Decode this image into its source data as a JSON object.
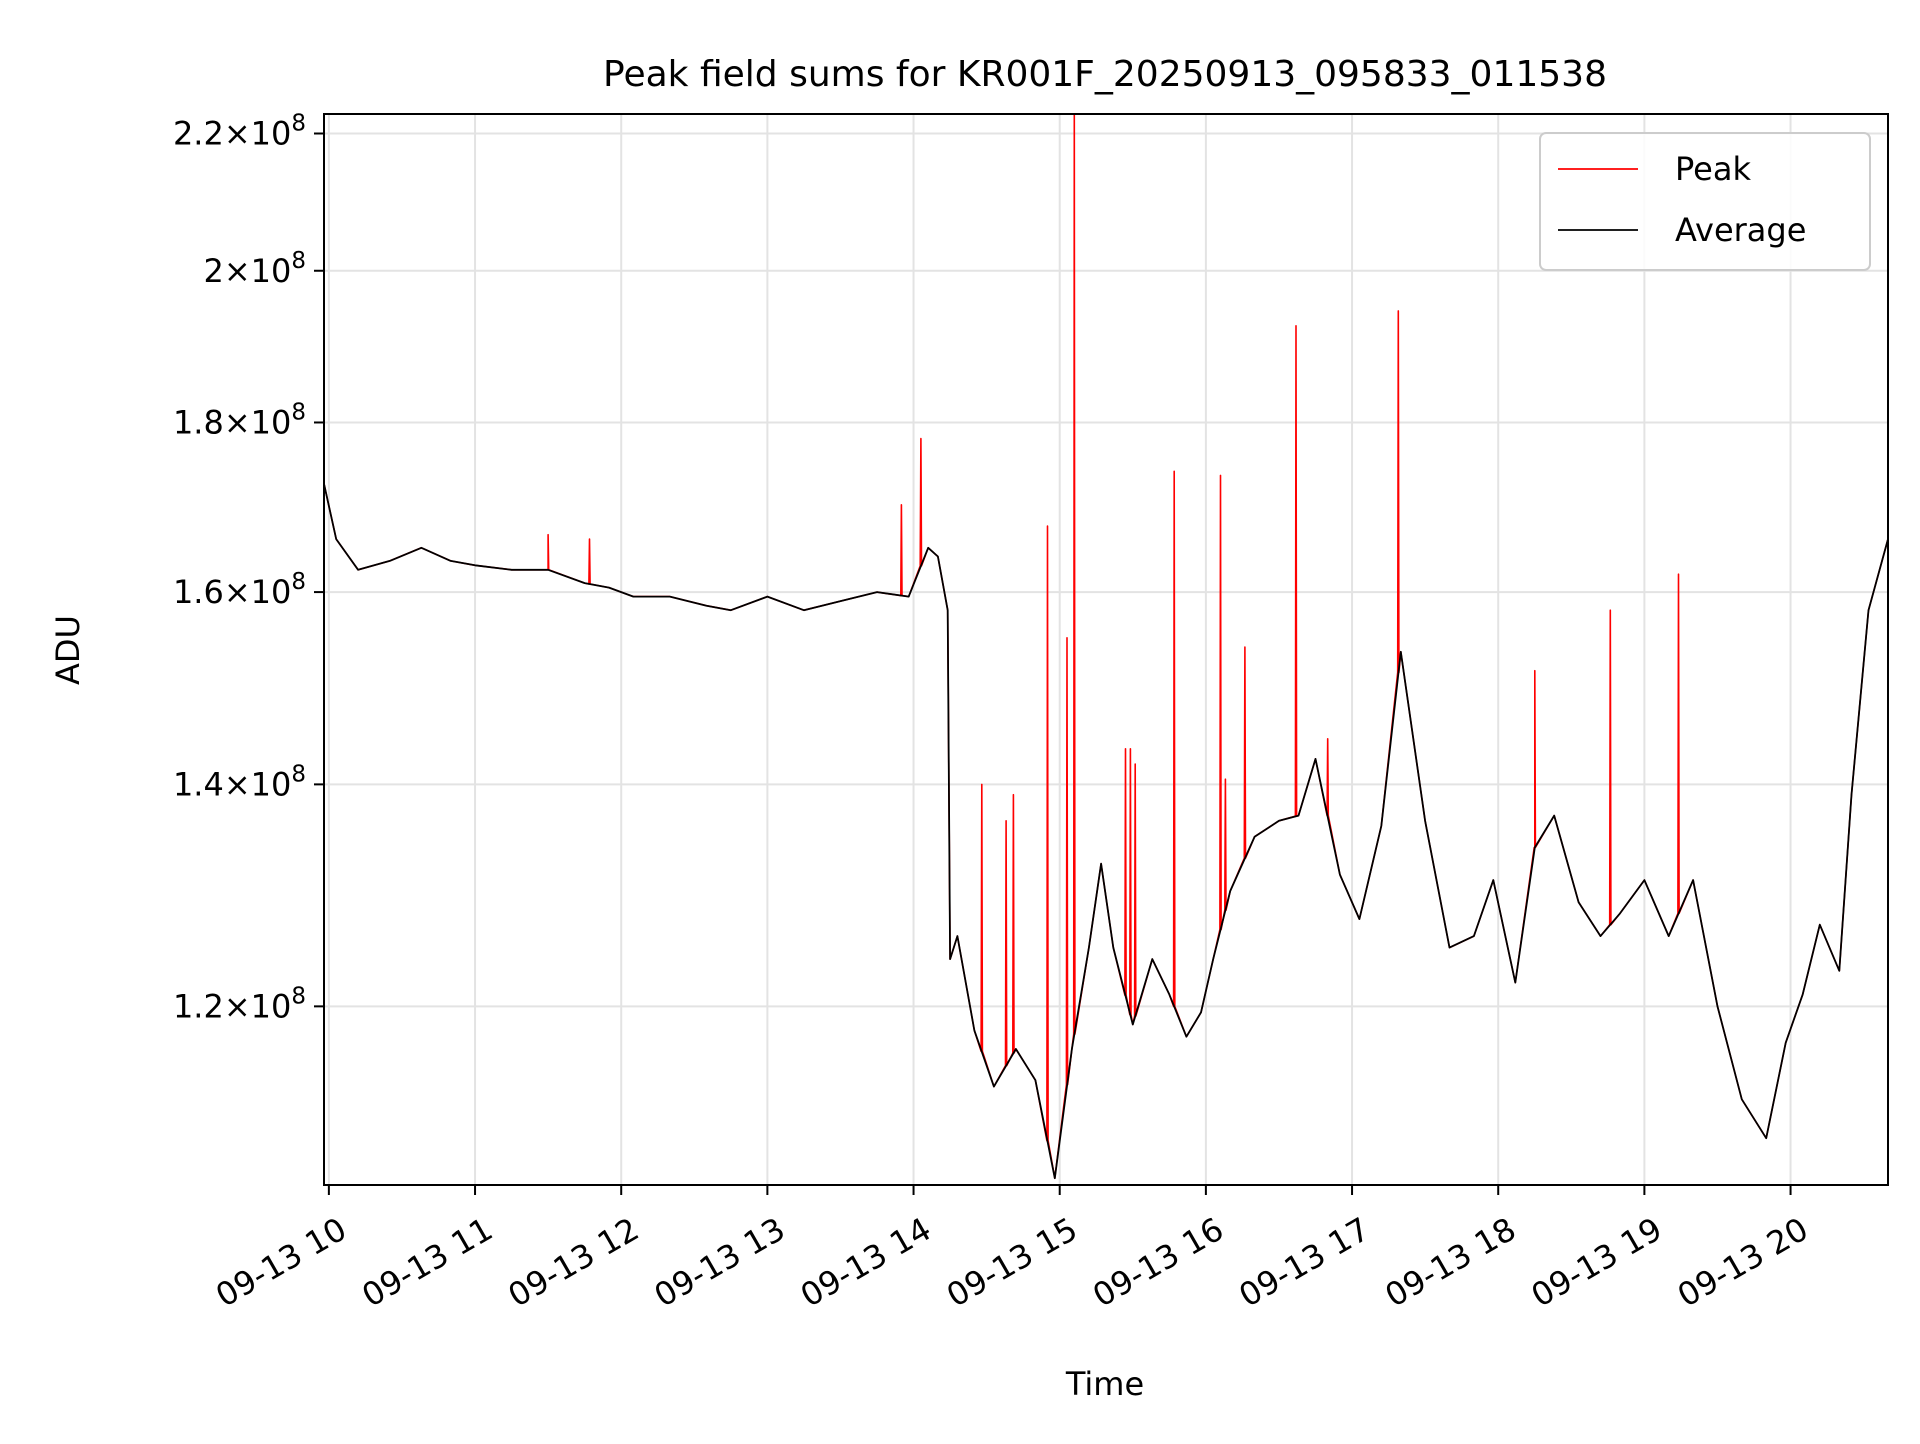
{
  "chart_data": {
    "type": "line",
    "title": "Peak field sums for KR001F_20250913_095833_011538",
    "xlabel": "Time",
    "ylabel": "ADU",
    "y_scale": "log",
    "xlim": [
      "2025-09-13 09:58",
      "2025-09-13 20:40"
    ],
    "ylim": [
      106000000,
      223000000
    ],
    "grid": true,
    "legend_position": "top-right",
    "x_ticks": [
      {
        "t": "2025-09-13 10:00",
        "label": "09-13 10"
      },
      {
        "t": "2025-09-13 11:00",
        "label": "09-13 11"
      },
      {
        "t": "2025-09-13 12:00",
        "label": "09-13 12"
      },
      {
        "t": "2025-09-13 13:00",
        "label": "09-13 13"
      },
      {
        "t": "2025-09-13 14:00",
        "label": "09-13 14"
      },
      {
        "t": "2025-09-13 15:00",
        "label": "09-13 15"
      },
      {
        "t": "2025-09-13 16:00",
        "label": "09-13 16"
      },
      {
        "t": "2025-09-13 17:00",
        "label": "09-13 17"
      },
      {
        "t": "2025-09-13 18:00",
        "label": "09-13 18"
      },
      {
        "t": "2025-09-13 19:00",
        "label": "09-13 19"
      },
      {
        "t": "2025-09-13 20:00",
        "label": "09-13 20"
      }
    ],
    "y_ticks": [
      {
        "value": 120000000,
        "mantissa": "1.2",
        "exponent": "8"
      },
      {
        "value": 140000000,
        "mantissa": "1.4",
        "exponent": "8"
      },
      {
        "value": 160000000,
        "mantissa": "1.6",
        "exponent": "8"
      },
      {
        "value": 180000000,
        "mantissa": "1.8",
        "exponent": "8"
      },
      {
        "value": 200000000,
        "mantissa": "2",
        "exponent": "8"
      },
      {
        "value": 220000000,
        "mantissa": "2.2",
        "exponent": "8"
      }
    ],
    "series": [
      {
        "name": "Average",
        "color": "#000000",
        "x": [
          "2025-09-13 09:58",
          "2025-09-13 10:03",
          "2025-09-13 10:12",
          "2025-09-13 10:25",
          "2025-09-13 10:38",
          "2025-09-13 10:50",
          "2025-09-13 11:00",
          "2025-09-13 11:15",
          "2025-09-13 11:30",
          "2025-09-13 11:45",
          "2025-09-13 11:55",
          "2025-09-13 12:05",
          "2025-09-13 12:20",
          "2025-09-13 12:35",
          "2025-09-13 12:45",
          "2025-09-13 13:00",
          "2025-09-13 13:15",
          "2025-09-13 13:30",
          "2025-09-13 13:45",
          "2025-09-13 13:58",
          "2025-09-13 14:06",
          "2025-09-13 14:10",
          "2025-09-13 14:14",
          "2025-09-13 14:15",
          "2025-09-13 14:18",
          "2025-09-13 14:25",
          "2025-09-13 14:33",
          "2025-09-13 14:42",
          "2025-09-13 14:50",
          "2025-09-13 14:58",
          "2025-09-13 15:05",
          "2025-09-13 15:12",
          "2025-09-13 15:17",
          "2025-09-13 15:22",
          "2025-09-13 15:30",
          "2025-09-13 15:38",
          "2025-09-13 15:45",
          "2025-09-13 15:52",
          "2025-09-13 15:58",
          "2025-09-13 16:03",
          "2025-09-13 16:10",
          "2025-09-13 16:20",
          "2025-09-13 16:30",
          "2025-09-13 16:38",
          "2025-09-13 16:45",
          "2025-09-13 16:55",
          "2025-09-13 17:03",
          "2025-09-13 17:12",
          "2025-09-13 17:20",
          "2025-09-13 17:30",
          "2025-09-13 17:40",
          "2025-09-13 17:50",
          "2025-09-13 17:58",
          "2025-09-13 18:07",
          "2025-09-13 18:15",
          "2025-09-13 18:23",
          "2025-09-13 18:33",
          "2025-09-13 18:42",
          "2025-09-13 18:50",
          "2025-09-13 19:00",
          "2025-09-13 19:10",
          "2025-09-13 19:20",
          "2025-09-13 19:30",
          "2025-09-13 19:40",
          "2025-09-13 19:50",
          "2025-09-13 19:58",
          "2025-09-13 20:05",
          "2025-09-13 20:12",
          "2025-09-13 20:20",
          "2025-09-13 20:25",
          "2025-09-13 20:32",
          "2025-09-13 20:40"
        ],
        "values": [
          172500000,
          166000000,
          162500000,
          163500000,
          165000000,
          163500000,
          163000000,
          162500000,
          162500000,
          161000000,
          160500000,
          159500000,
          159500000,
          158500000,
          158000000,
          159500000,
          158000000,
          159000000,
          160000000,
          159500000,
          165000000,
          164000000,
          158000000,
          124000000,
          126000000,
          118000000,
          113500000,
          116500000,
          114000000,
          106500000,
          116500000,
          125000000,
          132500000,
          125000000,
          118500000,
          124000000,
          121000000,
          117500000,
          119500000,
          124000000,
          130000000,
          135000000,
          136500000,
          137000000,
          142500000,
          131500000,
          127500000,
          136000000,
          153500000,
          136500000,
          125000000,
          126000000,
          131000000,
          122000000,
          134000000,
          137000000,
          129000000,
          126000000,
          128000000,
          131000000,
          126000000,
          131000000,
          120000000,
          112500000,
          109500000,
          117000000,
          121000000,
          127000000,
          123000000,
          139000000,
          158000000,
          166000000
        ]
      },
      {
        "name": "Peak",
        "color": "#ff0000",
        "base": "Average",
        "spikes": [
          {
            "t": "2025-09-13 11:30",
            "value": 166500000
          },
          {
            "t": "2025-09-13 11:47",
            "value": 166000000
          },
          {
            "t": "2025-09-13 13:55",
            "value": 170000000
          },
          {
            "t": "2025-09-13 14:03",
            "value": 178000000
          },
          {
            "t": "2025-09-13 14:28",
            "value": 140000000
          },
          {
            "t": "2025-09-13 14:38",
            "value": 136500000
          },
          {
            "t": "2025-09-13 14:41",
            "value": 139000000
          },
          {
            "t": "2025-09-13 14:55",
            "value": 167500000
          },
          {
            "t": "2025-09-13 15:03",
            "value": 155000000
          },
          {
            "t": "2025-09-13 15:06",
            "value": 223000000
          },
          {
            "t": "2025-09-13 15:27",
            "value": 143500000
          },
          {
            "t": "2025-09-13 15:29",
            "value": 143500000
          },
          {
            "t": "2025-09-13 15:31",
            "value": 142000000
          },
          {
            "t": "2025-09-13 15:47",
            "value": 174000000
          },
          {
            "t": "2025-09-13 16:06",
            "value": 173500000
          },
          {
            "t": "2025-09-13 16:08",
            "value": 140500000
          },
          {
            "t": "2025-09-13 16:16",
            "value": 154000000
          },
          {
            "t": "2025-09-13 16:37",
            "value": 192500000
          },
          {
            "t": "2025-09-13 16:50",
            "value": 144500000
          },
          {
            "t": "2025-09-13 17:19",
            "value": 194500000
          },
          {
            "t": "2025-09-13 18:15",
            "value": 151500000
          },
          {
            "t": "2025-09-13 18:46",
            "value": 158000000
          },
          {
            "t": "2025-09-13 19:14",
            "value": 162000000
          }
        ]
      }
    ]
  }
}
